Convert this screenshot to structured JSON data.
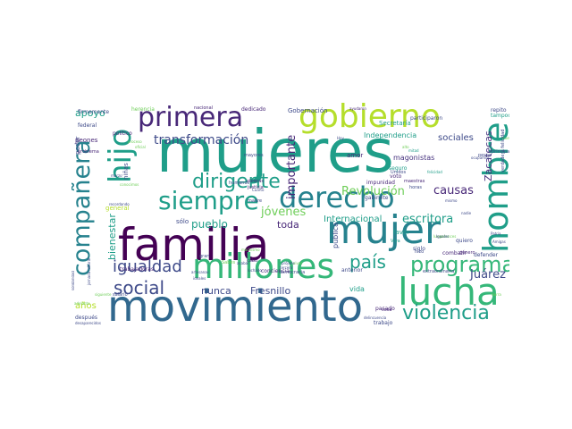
{
  "cloud": {
    "words": {
      "mujeres": "mujeres",
      "familia": "familia",
      "movimiento": "movimiento",
      "lucha": "lucha",
      "mujer": "mujer",
      "millones": "millones",
      "hombre": "hombre",
      "gobierno": "gobierno",
      "derecho": "derecho",
      "hijo": "hijo",
      "compañera": "compañera",
      "primera": "primera",
      "siempre": "siempre",
      "programa": "programa",
      "violencia": "violencia",
      "país": "país",
      "social": "social",
      "dirigente": "dirigente",
      "igualdad": "igualdad",
      "transformación": "transformación",
      "jóvenes": "jóvenes",
      "Revolución": "Revolución",
      "escritora": "escritora",
      "importante": "importante",
      "causas": "causas",
      "Juárez": "Juárez",
      "apoyo": "apoyo",
      "pueblo": "pueblo",
      "bienestar": "bienestar",
      "Zacatecas": "Zacatecas",
      "Fresnillo": "Fresnillo",
      "nunca": "nunca",
      "toda": "toda",
      "años": "años",
      "sociales": "sociales",
      "Internacional": "Internacional",
      "Independencia": "Independencia",
      "magonistas": "magonistas",
      "pública": "pública",
      "vida": "vida",
      "Gobernación": "Gobernación",
      "Secretaría": "Secretaría",
      "sólo": "sólo",
      "niñas": "niñas",
      "amor": "amor",
      "favor": "favor",
      "peones": "peones",
      "poder": "poder",
      "general": "general",
      "herencia": "herencia",
      "dedicado": "dedicado",
      "participaron": "participaron",
      "repito": "repito",
      "tampoco": "tampoco",
      "firmemente": "firmemente",
      "federal": "federal",
      "político": "político",
      "seguro": "seguro",
      "voto": "voto",
      "impunidad": "impunidad",
      "gabinete": "gabinete",
      "anterior": "anterior",
      "siglo": "siglo",
      "combatir": "combatir",
      "quiero": "quiero",
      "defender": "defender",
      "trabajadoras": "trabajadoras",
      "conciencia": "conciencia",
      "después": "después",
      "pasado": "pasado",
      "trabajo": "trabajo",
      "humanos": "humanos",
      "madre": "madre",
      "justicia": "justicia",
      "obreras": "obreras",
      "mayores": "mayores",
      "democracia": "democracia",
      "cosa": "cosa",
      "salario": "salario",
      "Unidos": "Unidos",
      "maestras": "maestras",
      "horas": "horas",
      "mitad": "mitad",
      "extraordinaria": "extraordinaria",
      "hizo": "hizo",
      "ayudaron": "ayudaron",
      "nacional": "nacional",
      "gran": "gran",
      "cabo": "cabo",
      "problema": "problema",
      "pesos": "pesos",
      "ocupamos": "ocupamos",
      "principal": "principal",
      "género": "género",
      "Patria": "Patria",
      "Amigas": "Amigas",
      "Viva": "Viva",
      "delincuencia": "delincuencia",
      "desaparecidos": "desaparecidos",
      "solidaridad": "solidaridad",
      "jornada laboral": "jornada laboral",
      "felicidad": "felicidad",
      "verdadera felicidad": "verdadera felicidad",
      "Sabes": "Sabes",
      "acabar": "acabar",
      "Cuarto": "Cuarto",
      "Hoy": "Hoy",
      "artesanas": "artesanas",
      "ideales": "ideales",
      "luchado": "luchado",
      "marzo": "marzo",
      "nadie": "nadie",
      "mismo": "mismo",
      "prójimo": "prójimo",
      "tercero": "tercero",
      "machismo": "machismo",
      "conocimos": "conocimos",
      "siguiente": "siguiente",
      "entonces": "entonces",
      "recordando": "recordando",
      "adelante": "adelante",
      "proceso": "proceso",
      "oficial": "oficial",
      "luego": "luego",
      "vivas": "vivas",
      "nueva": "nueva",
      "alto": "alto",
      "tierra": "tierra",
      "Iguales": "Iguales"
    }
  }
}
